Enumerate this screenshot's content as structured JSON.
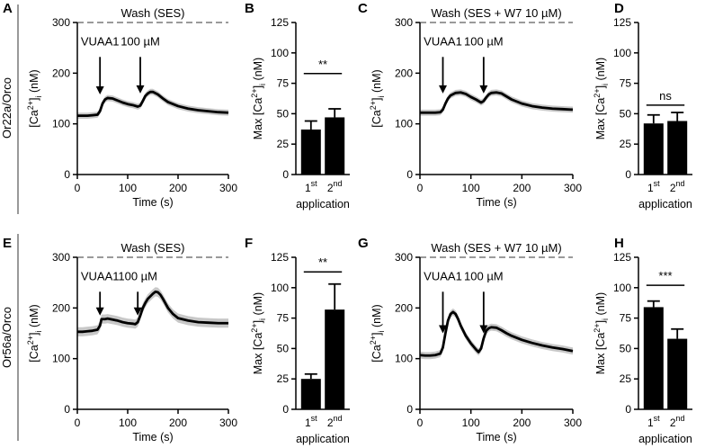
{
  "row_labels": [
    "Or22a/Orco",
    "Or56a/Orco"
  ],
  "chart_data": [
    {
      "panel": "A",
      "type": "line",
      "row": 0,
      "wash_label": "Wash (SES)",
      "xlabel": "Time (s)",
      "ylabel": "[Ca2+]i (nM)",
      "xlim": [
        0,
        300
      ],
      "ylim": [
        0,
        300
      ],
      "xticks": [
        0,
        100,
        200,
        300
      ],
      "yticks": [
        0,
        100,
        200,
        300
      ],
      "wash_level": 300,
      "annotations": [
        {
          "text": "VUAA1",
          "x": 45,
          "y_text": 255,
          "y_from": 232,
          "y_to": 158
        },
        {
          "text": "100 µM",
          "x": 125,
          "y_text": 255,
          "y_from": 232,
          "y_to": 160
        }
      ],
      "series": [
        {
          "name": "mean",
          "x": [
            0,
            10,
            20,
            30,
            40,
            45,
            50,
            55,
            60,
            70,
            80,
            90,
            100,
            110,
            120,
            125,
            130,
            135,
            140,
            145,
            150,
            160,
            170,
            180,
            200,
            220,
            240,
            260,
            280,
            300
          ],
          "y": [
            116,
            116,
            116,
            117,
            118,
            125,
            140,
            148,
            151,
            150,
            146,
            142,
            139,
            137,
            134,
            136,
            145,
            155,
            160,
            163,
            163,
            158,
            150,
            143,
            135,
            130,
            127,
            125,
            123,
            122
          ],
          "sem": 6
        }
      ]
    },
    {
      "panel": "B",
      "type": "bar",
      "row": 0,
      "categories": [
        [
          "1",
          "st"
        ],
        [
          "2",
          "nd"
        ]
      ],
      "xlabel": "application",
      "ylabel": "Max [Ca2+]i (nM)",
      "ylim": [
        0,
        125
      ],
      "yticks": [
        0,
        25,
        50,
        75,
        100,
        125
      ],
      "values": [
        37,
        47
      ],
      "errors": [
        7,
        7
      ],
      "significance": "**",
      "sig_y": 83
    },
    {
      "panel": "C",
      "type": "line",
      "row": 0,
      "wash_label": "Wash (SES + W7 10 µM)",
      "xlabel": "Time (s)",
      "ylabel": "[Ca2+]i (nM)",
      "xlim": [
        0,
        300
      ],
      "ylim": [
        0,
        300
      ],
      "xticks": [
        0,
        100,
        200,
        300
      ],
      "yticks": [
        0,
        100,
        200,
        300
      ],
      "wash_level": 300,
      "annotations": [
        {
          "text": "VUAA1",
          "x": 45,
          "y_text": 255,
          "y_from": 232,
          "y_to": 160
        },
        {
          "text": "100 µM",
          "x": 125,
          "y_text": 255,
          "y_from": 232,
          "y_to": 160
        }
      ],
      "series": [
        {
          "name": "mean",
          "x": [
            0,
            10,
            20,
            30,
            40,
            45,
            50,
            55,
            60,
            70,
            80,
            90,
            100,
            110,
            120,
            125,
            130,
            135,
            140,
            150,
            160,
            170,
            180,
            200,
            220,
            240,
            260,
            280,
            300
          ],
          "y": [
            122,
            122,
            122,
            122,
            123,
            128,
            140,
            150,
            156,
            161,
            162,
            159,
            153,
            148,
            142,
            145,
            152,
            158,
            161,
            162,
            160,
            154,
            148,
            140,
            135,
            132,
            130,
            129,
            128
          ],
          "sem": 6
        }
      ]
    },
    {
      "panel": "D",
      "type": "bar",
      "row": 0,
      "categories": [
        [
          "1",
          "st"
        ],
        [
          "2",
          "nd"
        ]
      ],
      "xlabel": "application",
      "ylabel": "Max [Ca2+]i (nM)",
      "ylim": [
        0,
        125
      ],
      "yticks": [
        0,
        25,
        50,
        75,
        100,
        125
      ],
      "values": [
        42,
        44
      ],
      "errors": [
        7,
        7
      ],
      "significance": "ns",
      "sig_y": 57
    },
    {
      "panel": "E",
      "type": "line",
      "row": 1,
      "wash_label": "Wash (SES)",
      "xlabel": "Time (s)",
      "ylabel": "[Ca2+]i (nM)",
      "xlim": [
        0,
        300
      ],
      "ylim": [
        0,
        300
      ],
      "xticks": [
        0,
        100,
        200,
        300
      ],
      "yticks": [
        0,
        100,
        200,
        300
      ],
      "wash_level": 300,
      "annotations": [
        {
          "text": "VUAA1",
          "x": 45,
          "y_text": 255,
          "y_from": 232,
          "y_to": 185
        },
        {
          "text": "100 µM",
          "x": 120,
          "y_text": 255,
          "y_from": 232,
          "y_to": 185
        }
      ],
      "series": [
        {
          "name": "mean",
          "x": [
            0,
            10,
            20,
            30,
            40,
            45,
            48,
            55,
            60,
            70,
            80,
            90,
            100,
            110,
            115,
            120,
            125,
            130,
            135,
            140,
            150,
            155,
            160,
            165,
            170,
            180,
            190,
            200,
            220,
            240,
            260,
            280,
            300
          ],
          "y": [
            153,
            153,
            154,
            155,
            157,
            165,
            178,
            178,
            179,
            177,
            175,
            172,
            170,
            169,
            168,
            172,
            185,
            200,
            210,
            218,
            228,
            232,
            231,
            226,
            218,
            200,
            188,
            180,
            175,
            172,
            171,
            170,
            170
          ],
          "sem": 9
        }
      ]
    },
    {
      "panel": "F",
      "type": "bar",
      "row": 1,
      "categories": [
        [
          "1",
          "st"
        ],
        [
          "2",
          "nd"
        ]
      ],
      "xlabel": "application",
      "ylabel": "Max [Ca2+]i (nM)",
      "ylim": [
        0,
        125
      ],
      "yticks": [
        0,
        25,
        50,
        75,
        100,
        125
      ],
      "values": [
        25,
        82
      ],
      "errors": [
        4,
        21
      ],
      "significance": "**",
      "sig_y": 113
    },
    {
      "panel": "G",
      "type": "line",
      "row": 1,
      "wash_label": "Wash (SES + W7 10 µM)",
      "xlabel": "Time (s)",
      "ylabel": "[Ca2+]i (nM)",
      "xlim": [
        0,
        300
      ],
      "ylim": [
        0,
        300
      ],
      "xticks": [
        0,
        100,
        200,
        300
      ],
      "yticks": [
        0,
        100,
        200,
        300
      ],
      "wash_level": 300,
      "annotations": [
        {
          "text": "VUAA1",
          "x": 45,
          "y_text": 255,
          "y_from": 232,
          "y_to": 150
        },
        {
          "text": "100 µM",
          "x": 125,
          "y_text": 255,
          "y_from": 232,
          "y_to": 150
        }
      ],
      "series": [
        {
          "name": "mean",
          "x": [
            0,
            10,
            20,
            30,
            40,
            45,
            50,
            55,
            60,
            65,
            70,
            75,
            80,
            90,
            100,
            110,
            115,
            120,
            125,
            130,
            135,
            140,
            150,
            160,
            170,
            180,
            200,
            220,
            240,
            260,
            280,
            300
          ],
          "y": [
            107,
            106,
            106,
            107,
            110,
            122,
            150,
            175,
            188,
            192,
            188,
            178,
            165,
            145,
            130,
            118,
            113,
            120,
            140,
            155,
            160,
            162,
            161,
            156,
            150,
            145,
            137,
            131,
            126,
            122,
            119,
            115
          ],
          "sem": 7
        }
      ]
    },
    {
      "panel": "H",
      "type": "bar",
      "row": 1,
      "categories": [
        [
          "1",
          "st"
        ],
        [
          "2",
          "nd"
        ]
      ],
      "xlabel": "application",
      "ylabel": "Max [Ca2+]i (nM)",
      "ylim": [
        0,
        125
      ],
      "yticks": [
        0,
        25,
        50,
        75,
        100,
        125
      ],
      "values": [
        84,
        58
      ],
      "errors": [
        5,
        8
      ],
      "significance": "***",
      "sig_y": 102
    }
  ]
}
